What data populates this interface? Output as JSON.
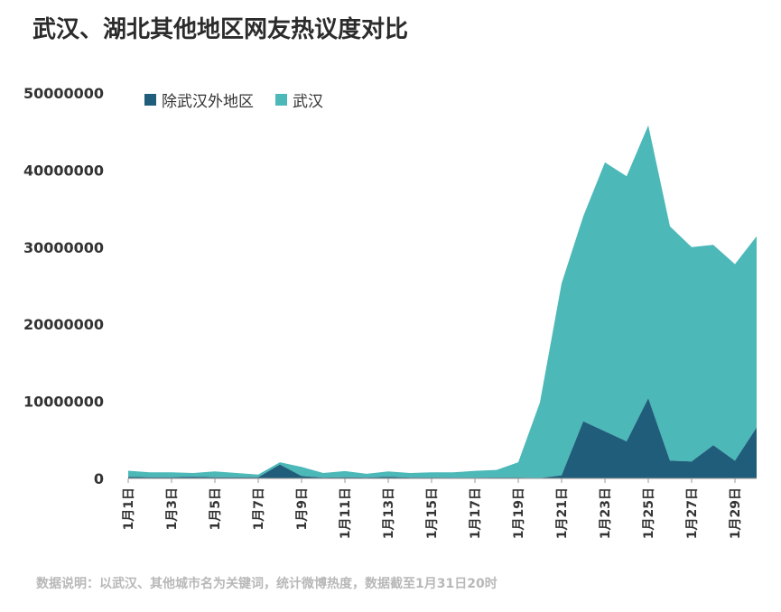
{
  "title": "武汉、湖北其他地区网友热议度对比",
  "note": "数据说明：以武汉、其他城市名为关键词，统计微博热度，数据截至1月31日20时",
  "chart_data": {
    "type": "area",
    "stacked": true,
    "x": [
      "1月1日",
      "1月2日",
      "1月3日",
      "1月4日",
      "1月5日",
      "1月6日",
      "1月7日",
      "1月8日",
      "1月9日",
      "1月10日",
      "1月11日",
      "1月12日",
      "1月13日",
      "1月14日",
      "1月15日",
      "1月16日",
      "1月17日",
      "1月18日",
      "1月19日",
      "1月20日",
      "1月21日",
      "1月22日",
      "1月23日",
      "1月24日",
      "1月25日",
      "1月26日",
      "1月27日",
      "1月28日",
      "1月29日",
      "1月30日"
    ],
    "xticks": [
      "1月1日",
      "1月3日",
      "1月5日",
      "1月7日",
      "1月9日",
      "1月11日",
      "1月13日",
      "1月15日",
      "1月17日",
      "1月19日",
      "1月21日",
      "1月23日",
      "1月25日",
      "1月27日",
      "1月29日"
    ],
    "yticks": [
      "0",
      "10000000",
      "20000000",
      "30000000",
      "40000000",
      "50000000"
    ],
    "ylim": [
      0,
      50000000
    ],
    "series": [
      {
        "name": "除武汉外地区",
        "color": "#1f5d7a",
        "values": [
          200000,
          150000,
          150000,
          200000,
          150000,
          150000,
          150000,
          1800000,
          300000,
          100000,
          150000,
          100000,
          200000,
          100000,
          100000,
          80000,
          80000,
          100000,
          100000,
          50000,
          400000,
          7400000,
          6100000,
          4800000,
          10400000,
          2300000,
          2200000,
          4300000,
          2300000,
          6600000
        ]
      },
      {
        "name": "武汉",
        "color": "#4cb8b8",
        "values": [
          800000,
          650000,
          650000,
          500000,
          750000,
          550000,
          350000,
          300000,
          1200000,
          600000,
          800000,
          500000,
          700000,
          600000,
          700000,
          700000,
          900000,
          1000000,
          2000000,
          9800000,
          24900000,
          26600000,
          34900000,
          34400000,
          35400000,
          30400000,
          27800000,
          26000000,
          25500000,
          24800000
        ]
      }
    ],
    "legend_position": "top"
  }
}
